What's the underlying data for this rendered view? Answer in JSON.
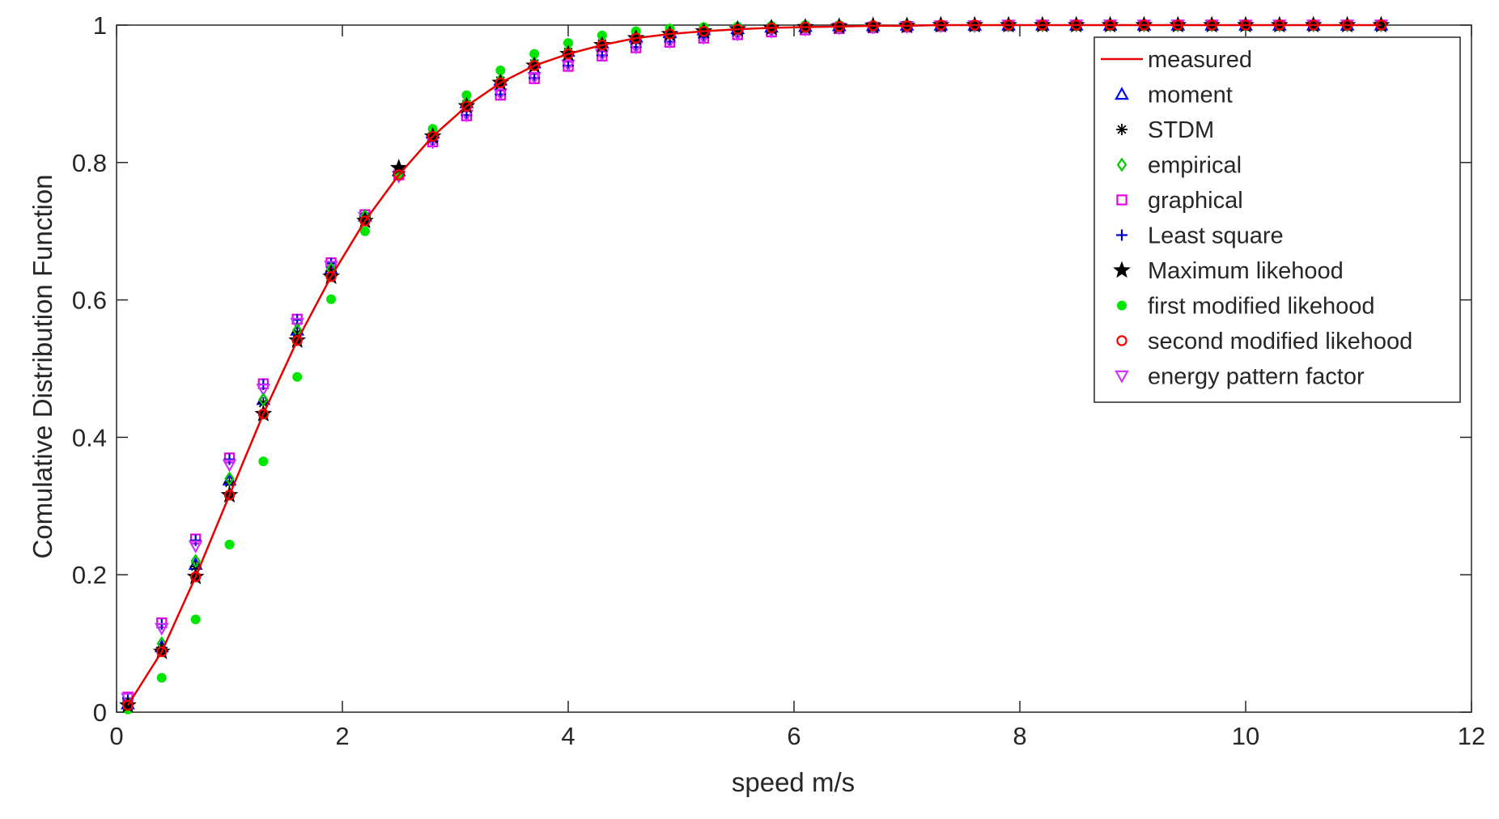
{
  "chart_data": {
    "type": "line",
    "title": "",
    "xlabel": "speed m/s",
    "ylabel": "Comulative Distribution Function",
    "xlim": [
      0,
      12
    ],
    "ylim": [
      0,
      1
    ],
    "xticks": [
      "0",
      "2",
      "4",
      "6",
      "8",
      "10",
      "12"
    ],
    "yticks": [
      "0",
      "0.2",
      "0.4",
      "0.6",
      "0.8",
      "1"
    ],
    "grid": false,
    "legend_position": "top-right",
    "x": [
      0.1,
      0.4,
      0.7,
      1.0,
      1.3,
      1.6,
      1.9,
      2.2,
      2.5,
      2.8,
      3.1,
      3.4,
      3.7,
      4.0,
      4.3,
      4.6,
      4.9,
      5.2,
      5.5,
      5.8,
      6.1,
      6.4,
      6.7,
      7.0,
      7.3,
      7.6,
      7.9,
      8.2,
      8.5,
      8.8,
      9.1,
      9.4,
      9.7,
      10.0,
      10.3,
      10.6,
      10.9,
      11.2
    ],
    "series": [
      {
        "name": "measured",
        "marker": "line",
        "color": "#e60000",
        "values": [
          0.01,
          0.088,
          0.197,
          0.316,
          0.434,
          0.541,
          0.634,
          0.715,
          0.782,
          0.838,
          0.882,
          0.916,
          0.941,
          0.958,
          0.971,
          0.981,
          0.987,
          0.991,
          0.994,
          0.996,
          0.997,
          0.998,
          0.999,
          0.999,
          1.0,
          1.0,
          1.0,
          1.0,
          1.0,
          1.0,
          1.0,
          1.0,
          1.0,
          1.0,
          1.0,
          1.0,
          1.0,
          1.0
        ]
      },
      {
        "name": "moment",
        "marker": "triangle-up",
        "color": "#0000ff",
        "values": [
          0.012,
          0.095,
          0.215,
          0.338,
          0.455,
          0.556,
          0.645,
          0.722,
          0.788,
          0.843,
          0.887,
          0.92,
          0.945,
          0.962,
          0.974,
          0.983,
          0.989,
          0.993,
          0.995,
          0.997,
          0.998,
          0.999,
          0.999,
          1.0,
          1.0,
          1.0,
          1.0,
          1.0,
          1.0,
          1.0,
          1.0,
          1.0,
          1.0,
          1.0,
          1.0,
          1.0,
          1.0,
          1.0
        ]
      },
      {
        "name": "STDM",
        "marker": "asterisk",
        "color": "#000000",
        "values": [
          0.012,
          0.094,
          0.212,
          0.334,
          0.45,
          0.552,
          0.642,
          0.72,
          0.786,
          0.841,
          0.885,
          0.919,
          0.944,
          0.961,
          0.973,
          0.982,
          0.988,
          0.992,
          0.995,
          0.997,
          0.998,
          0.999,
          0.999,
          1.0,
          1.0,
          1.0,
          1.0,
          1.0,
          1.0,
          1.0,
          1.0,
          1.0,
          1.0,
          1.0,
          1.0,
          1.0,
          1.0,
          1.0
        ]
      },
      {
        "name": "empirical",
        "marker": "diamond",
        "color": "#00cc00",
        "values": [
          0.012,
          0.1,
          0.22,
          0.34,
          0.455,
          0.556,
          0.645,
          0.722,
          0.788,
          0.843,
          0.887,
          0.92,
          0.945,
          0.962,
          0.974,
          0.983,
          0.989,
          0.993,
          0.995,
          0.997,
          0.998,
          0.999,
          0.999,
          1.0,
          1.0,
          1.0,
          1.0,
          1.0,
          1.0,
          1.0,
          1.0,
          1.0,
          1.0,
          1.0,
          1.0,
          1.0,
          1.0,
          1.0
        ]
      },
      {
        "name": "graphical",
        "marker": "square",
        "color": "#e600e6",
        "values": [
          0.022,
          0.13,
          0.252,
          0.37,
          0.478,
          0.572,
          0.654,
          0.724,
          0.782,
          0.83,
          0.868,
          0.898,
          0.922,
          0.94,
          0.955,
          0.967,
          0.975,
          0.981,
          0.986,
          0.99,
          0.993,
          0.995,
          0.996,
          0.997,
          0.998,
          0.999,
          0.999,
          1.0,
          1.0,
          1.0,
          1.0,
          1.0,
          1.0,
          1.0,
          1.0,
          1.0,
          1.0,
          1.0
        ]
      },
      {
        "name": "Least square",
        "marker": "plus",
        "color": "#0000cc",
        "values": [
          0.02,
          0.128,
          0.25,
          0.368,
          0.477,
          0.571,
          0.653,
          0.723,
          0.782,
          0.831,
          0.869,
          0.899,
          0.923,
          0.941,
          0.956,
          0.968,
          0.976,
          0.982,
          0.987,
          0.991,
          0.994,
          0.996,
          0.997,
          0.998,
          0.999,
          0.999,
          1.0,
          1.0,
          1.0,
          1.0,
          1.0,
          1.0,
          1.0,
          1.0,
          1.0,
          1.0,
          1.0,
          1.0
        ]
      },
      {
        "name": "Maximum likehood",
        "marker": "star",
        "color": "#000000",
        "values": [
          0.01,
          0.088,
          0.197,
          0.316,
          0.434,
          0.541,
          0.634,
          0.715,
          0.792,
          0.838,
          0.882,
          0.916,
          0.941,
          0.958,
          0.971,
          0.981,
          0.987,
          0.991,
          0.994,
          0.996,
          0.997,
          0.998,
          0.999,
          0.999,
          1.0,
          1.0,
          1.0,
          1.0,
          1.0,
          1.0,
          1.0,
          1.0,
          1.0,
          1.0,
          1.0,
          1.0,
          1.0,
          1.0
        ]
      },
      {
        "name": "first modified likehood",
        "marker": "dot",
        "color": "#00e600",
        "values": [
          0.004,
          0.05,
          0.135,
          0.244,
          0.365,
          0.488,
          0.601,
          0.7,
          0.783,
          0.849,
          0.898,
          0.934,
          0.958,
          0.974,
          0.985,
          0.991,
          0.995,
          0.997,
          0.998,
          0.999,
          1.0,
          1.0,
          1.0,
          1.0,
          1.0,
          1.0,
          1.0,
          1.0,
          1.0,
          1.0,
          1.0,
          1.0,
          1.0,
          1.0,
          1.0,
          1.0,
          1.0,
          1.0
        ]
      },
      {
        "name": "second modified likehood",
        "marker": "circle",
        "color": "#ff0000",
        "values": [
          0.01,
          0.088,
          0.197,
          0.316,
          0.434,
          0.541,
          0.634,
          0.715,
          0.782,
          0.838,
          0.882,
          0.916,
          0.941,
          0.958,
          0.971,
          0.981,
          0.987,
          0.991,
          0.994,
          0.996,
          0.997,
          0.998,
          0.999,
          0.999,
          1.0,
          1.0,
          1.0,
          1.0,
          1.0,
          1.0,
          1.0,
          1.0,
          1.0,
          1.0,
          1.0,
          1.0,
          1.0,
          1.0
        ]
      },
      {
        "name": "energy pattern factor",
        "marker": "triangle-down",
        "color": "#cc33ff",
        "values": [
          0.02,
          0.122,
          0.242,
          0.36,
          0.47,
          0.566,
          0.649,
          0.72,
          0.78,
          0.83,
          0.869,
          0.9,
          0.924,
          0.942,
          0.957,
          0.968,
          0.976,
          0.982,
          0.987,
          0.991,
          0.994,
          0.996,
          0.997,
          0.998,
          0.999,
          0.999,
          1.0,
          1.0,
          1.0,
          1.0,
          1.0,
          1.0,
          1.0,
          1.0,
          1.0,
          1.0,
          1.0,
          1.0
        ]
      }
    ]
  }
}
